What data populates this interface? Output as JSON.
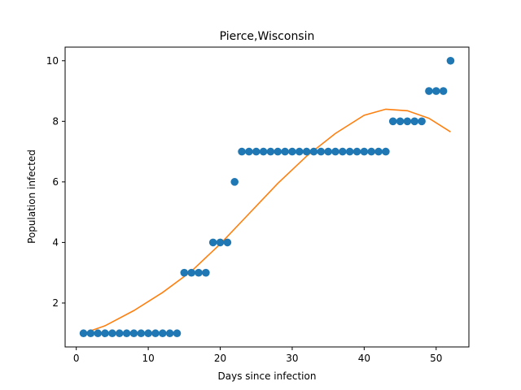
{
  "chart_data": {
    "type": "scatter",
    "title": "Pierce,Wisconsin",
    "xlabel": "Days since infection",
    "ylabel": "Population infected",
    "xlim": [
      -1.55,
      54.55
    ],
    "ylim": [
      0.55,
      10.45
    ],
    "xticks": [
      0,
      10,
      20,
      30,
      40,
      50
    ],
    "yticks": [
      2,
      4,
      6,
      8,
      10
    ],
    "grid": false,
    "series": [
      {
        "kind": "scatter",
        "color": "#1f77b4",
        "x": [
          1,
          2,
          3,
          4,
          5,
          6,
          7,
          8,
          9,
          10,
          11,
          12,
          13,
          14,
          15,
          16,
          17,
          18,
          19,
          20,
          21,
          22,
          23,
          24,
          25,
          26,
          27,
          28,
          29,
          30,
          31,
          32,
          33,
          34,
          35,
          36,
          37,
          38,
          39,
          40,
          41,
          42,
          43,
          44,
          45,
          46,
          47,
          48,
          49,
          50,
          51,
          52
        ],
        "y": [
          1,
          1,
          1,
          1,
          1,
          1,
          1,
          1,
          1,
          1,
          1,
          1,
          1,
          1,
          3,
          3,
          3,
          3,
          4,
          4,
          4,
          6,
          7,
          7,
          7,
          7,
          7,
          7,
          7,
          7,
          7,
          7,
          7,
          7,
          7,
          7,
          7,
          7,
          7,
          7,
          7,
          7,
          7,
          8,
          8,
          8,
          8,
          8,
          9,
          9,
          9,
          10
        ]
      },
      {
        "kind": "line",
        "color": "#ff7f0e",
        "x": [
          1,
          4,
          8,
          12,
          16,
          20,
          24,
          28,
          32,
          36,
          40,
          43,
          46,
          49,
          52
        ],
        "y": [
          1.0,
          1.25,
          1.75,
          2.35,
          3.05,
          3.95,
          4.95,
          5.95,
          6.85,
          7.6,
          8.2,
          8.4,
          8.35,
          8.1,
          7.65
        ]
      }
    ]
  }
}
